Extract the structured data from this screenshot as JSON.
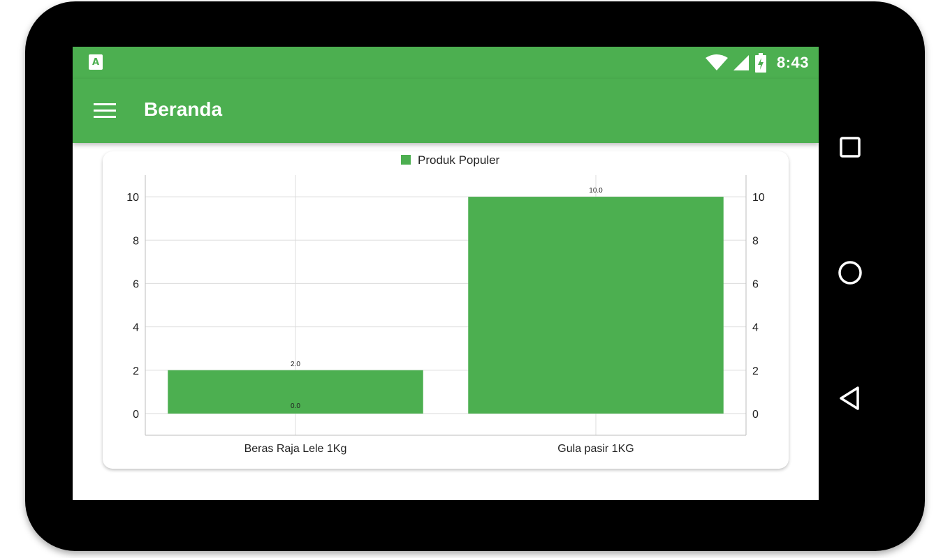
{
  "status_bar": {
    "time": "8:43",
    "app_icon": "A",
    "icons": [
      "wifi-icon",
      "cell-signal-icon",
      "battery-charging-icon"
    ]
  },
  "app_bar": {
    "title": "Beranda",
    "menu_icon": "hamburger-menu-icon"
  },
  "nav_bar": {
    "icons": [
      "recent-apps-icon",
      "home-icon",
      "back-icon"
    ]
  },
  "colors": {
    "primary": "#4caf50",
    "bar": "#4caf50",
    "grid": "#dcdcdc",
    "text": "#222222"
  },
  "chart_data": {
    "type": "bar",
    "legend": "Produk Populer",
    "legend_position": "top-center",
    "categories": [
      "Beras Raja Lele 1Kg",
      "Gula pasir 1KG"
    ],
    "series": [
      {
        "name": "Produk Populer",
        "values": [
          2.0,
          10.0
        ]
      }
    ],
    "value_labels": [
      "2.0",
      "10.0"
    ],
    "extra_label": "0.0",
    "y_ticks": [
      0,
      2,
      4,
      6,
      8,
      10
    ],
    "ylim": [
      -1,
      11
    ],
    "grid": true,
    "dual_y_axis": true
  }
}
